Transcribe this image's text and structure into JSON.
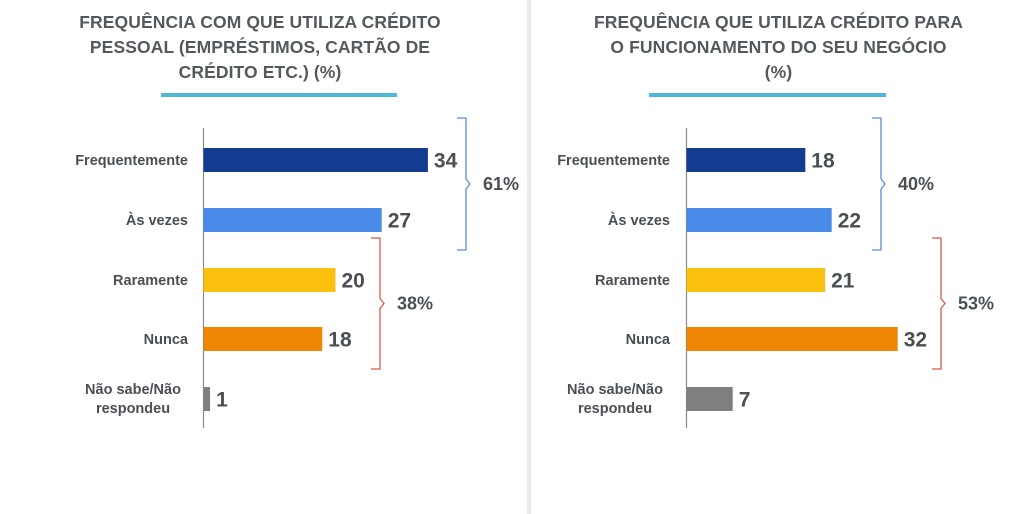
{
  "charts": [
    {
      "title_lines": [
        "FREQUÊNCIA COM QUE UTILIZA CRÉDITO",
        "PESSOAL (EMPRÉSTIMOS, CARTÃO DE",
        "CRÉDITO ETC.) (%)"
      ]
    },
    {
      "title_lines": [
        "FREQUÊNCIA QUE UTILIZA CRÉDITO PARA",
        "O FUNCIONAMENTO DO SEU NEGÓCIO",
        "(%)"
      ]
    }
  ],
  "chart_data": [
    {
      "type": "bar",
      "orientation": "horizontal",
      "title": "FREQUÊNCIA COM QUE UTILIZA CRÉDITO PESSOAL (EMPRÉSTIMOS, CARTÃO DE CRÉDITO ETC.) (%)",
      "categories": [
        "Frequentemente",
        "Às vezes",
        "Raramente",
        "Nunca",
        "Não sabe/Não respondeu"
      ],
      "values": [
        34,
        27,
        20,
        18,
        1
      ],
      "colors": [
        "#123c8f",
        "#4a8be9",
        "#fcc00f",
        "#ef8704",
        "#7f7f7f"
      ],
      "groups": [
        {
          "label": "61%",
          "categories": [
            "Frequentemente",
            "Às vezes"
          ],
          "color": "#5b8fd8"
        },
        {
          "label": "38%",
          "categories": [
            "Raramente",
            "Nunca"
          ],
          "color": "#e05555"
        }
      ]
    },
    {
      "type": "bar",
      "orientation": "horizontal",
      "title": "FREQUÊNCIA QUE UTILIZA CRÉDITO PARA O FUNCIONAMENTO DO SEU NEGÓCIO (%)",
      "categories": [
        "Frequentemente",
        "Às vezes",
        "Raramente",
        "Nunca",
        "Não sabe/Não respondeu"
      ],
      "values": [
        18,
        22,
        21,
        32,
        7
      ],
      "colors": [
        "#123c8f",
        "#4a8be9",
        "#fcc00f",
        "#ef8704",
        "#7f7f7f"
      ],
      "groups": [
        {
          "label": "40%",
          "categories": [
            "Frequentemente",
            "Às vezes"
          ],
          "color": "#5b8fd8"
        },
        {
          "label": "53%",
          "categories": [
            "Raramente",
            "Nunca"
          ],
          "color": "#e05555"
        }
      ]
    }
  ]
}
